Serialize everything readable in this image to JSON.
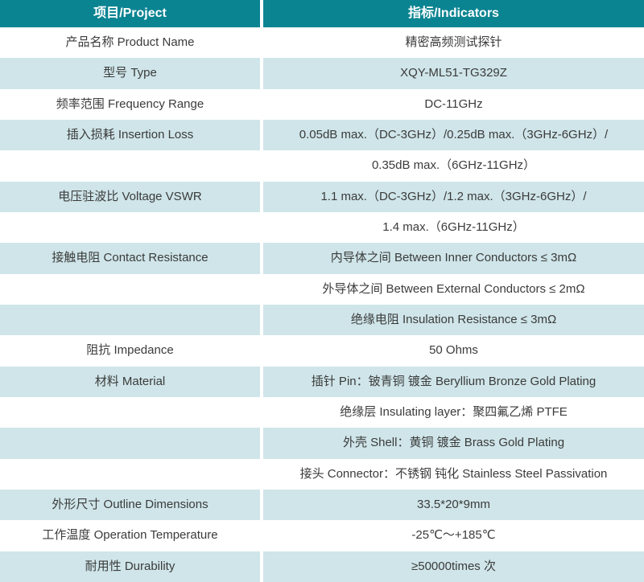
{
  "header": {
    "project": "项目/Project",
    "indicators": "指标/Indicators"
  },
  "rows": [
    {
      "project": "产品名称 Product Name",
      "indicator": "精密高频测试探针"
    },
    {
      "project": "型号 Type",
      "indicator": "XQY-ML51-TG329Z"
    },
    {
      "project": "频率范围 Frequency Range",
      "indicator": "DC-11GHz"
    },
    {
      "project": "插入损耗 Insertion Loss",
      "indicator": "0.05dB max.（DC-3GHz）/0.25dB max.（3GHz-6GHz）/"
    },
    {
      "project": "",
      "indicator": "0.35dB max.（6GHz-11GHz）"
    },
    {
      "project": "电压驻波比 Voltage VSWR",
      "indicator": "1.1 max.（DC-3GHz）/1.2 max.（3GHz-6GHz）/"
    },
    {
      "project": "",
      "indicator": "1.4 max.（6GHz-11GHz）"
    },
    {
      "project": "接触电阻 Contact Resistance",
      "indicator": "内导体之间 Between Inner Conductors ≤ 3mΩ"
    },
    {
      "project": "",
      "indicator": "外导体之间 Between External Conductors ≤ 2mΩ"
    },
    {
      "project": "",
      "indicator": "绝缘电阻 Insulation Resistance ≤ 3mΩ"
    },
    {
      "project": "阻抗 Impedance",
      "indicator": "50 Ohms"
    },
    {
      "project": "材料 Material",
      "indicator": "插针 Pin：铍青铜 镀金 Beryllium Bronze Gold Plating"
    },
    {
      "project": "",
      "indicator": "绝缘层 Insulating layer：聚四氟乙烯 PTFE"
    },
    {
      "project": "",
      "indicator": "外壳 Shell：黄铜 镀金 Brass Gold Plating"
    },
    {
      "project": "",
      "indicator": "接头 Connector：不锈钢 钝化 Stainless Steel Passivation"
    },
    {
      "project": "外形尺寸 Outline Dimensions",
      "indicator": "33.5*20*9mm"
    },
    {
      "project": "工作温度 Operation Temperature",
      "indicator": "-25℃～+185℃"
    },
    {
      "project": "耐用性 Durability",
      "indicator": "≥50000times 次"
    }
  ],
  "colors": {
    "header_bg": "#0b8492",
    "header_text": "#ffffff",
    "row_tint": "#cfe5e9",
    "row_white": "#ffffff",
    "text": "#3b3b3b"
  }
}
